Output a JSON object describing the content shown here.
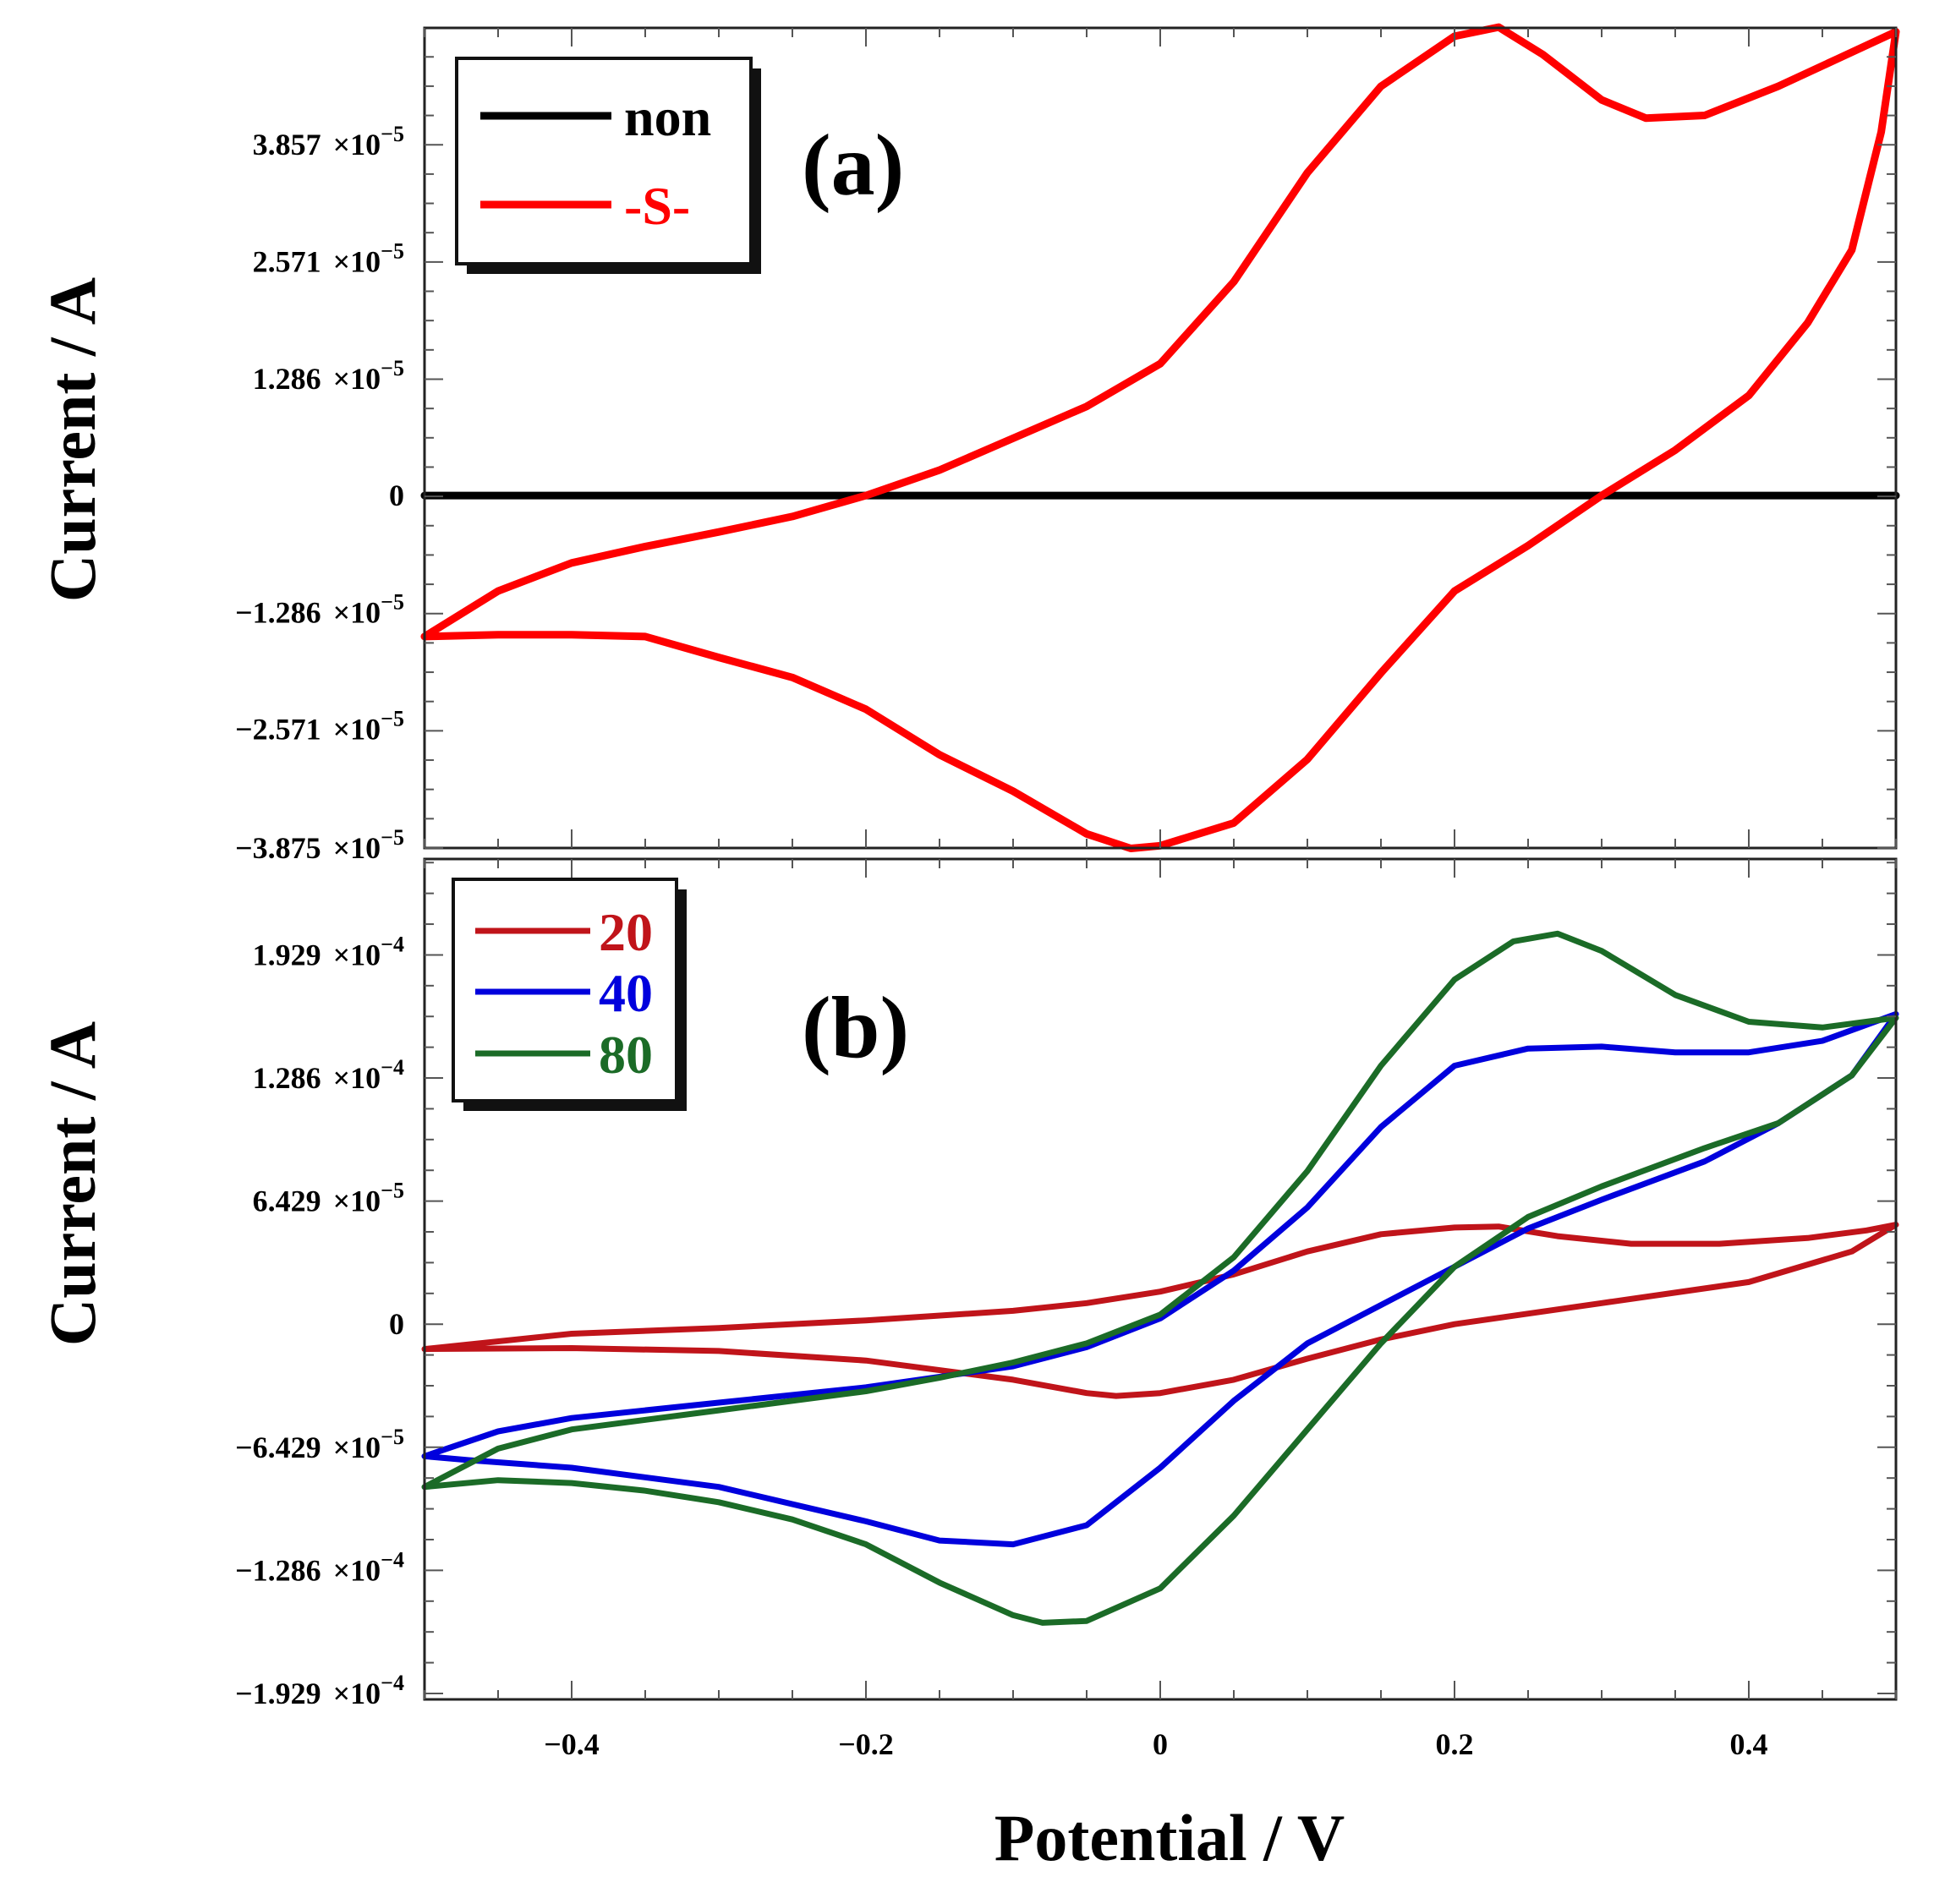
{
  "chart_data": [
    {
      "type": "line",
      "panel_label": "(a)",
      "xlabel": "Potential / V",
      "ylabel": "Current / A",
      "xlim": [
        -0.5,
        0.5
      ],
      "ylim": [
        -3.875e-05,
        5.142e-05
      ],
      "x_ticks": [
        -0.4,
        -0.2,
        0,
        0.2,
        0.4
      ],
      "y_ticks": [
        {
          "value": 3.857e-05,
          "mant": "3.857",
          "exp": "−5"
        },
        {
          "value": 2.571e-05,
          "mant": "2.571",
          "exp": "−5"
        },
        {
          "value": 1.286e-05,
          "mant": "1.286",
          "exp": "−5"
        },
        {
          "value": 0,
          "mant": "0",
          "exp": ""
        },
        {
          "value": -1.286e-05,
          "mant": "−1.286",
          "exp": "−5"
        },
        {
          "value": -2.571e-05,
          "mant": "−2.571",
          "exp": "−5"
        },
        {
          "value": -3.875e-05,
          "mant": "−3.875",
          "exp": "−5"
        }
      ],
      "legend_position": "top-left",
      "series": [
        {
          "name": "non",
          "color": "#000000",
          "x": [
            -0.5,
            0.5
          ],
          "y": [
            0,
            0
          ]
        },
        {
          "name": "-S-",
          "color": "#ff0000",
          "x": [
            -0.5,
            -0.45,
            -0.4,
            -0.35,
            -0.3,
            -0.25,
            -0.2,
            -0.15,
            -0.1,
            -0.05,
            0,
            0.05,
            0.1,
            0.15,
            0.2,
            0.23,
            0.26,
            0.3,
            0.33,
            0.37,
            0.42,
            0.46,
            0.5,
            0.49,
            0.47,
            0.44,
            0.4,
            0.35,
            0.3,
            0.25,
            0.2,
            0.15,
            0.1,
            0.05,
            0,
            -0.02,
            -0.05,
            -0.1,
            -0.15,
            -0.2,
            -0.25,
            -0.3,
            -0.35,
            -0.4,
            -0.45,
            -0.5
          ],
          "y": [
            -1.55e-05,
            -1.05e-05,
            -7.4e-06,
            -5.6e-06,
            -4e-06,
            -2.3e-06,
            0,
            2.8e-06,
            6.3e-06,
            9.8e-06,
            1.45e-05,
            2.35e-05,
            3.55e-05,
            4.5e-05,
            5.05e-05,
            5.15e-05,
            4.85e-05,
            4.35e-05,
            4.15e-05,
            4.18e-05,
            4.5e-05,
            4.8e-05,
            5.1e-05,
            4e-05,
            2.7e-05,
            1.9e-05,
            1.1e-05,
            5e-06,
            0,
            -5.5e-06,
            -1.05e-05,
            -1.95e-05,
            -2.9e-05,
            -3.6e-05,
            -3.85e-05,
            -3.88e-05,
            -3.72e-05,
            -3.25e-05,
            -2.85e-05,
            -2.35e-05,
            -2e-05,
            -1.78e-05,
            -1.55e-05,
            -1.53e-05,
            -1.53e-05,
            -1.55e-05
          ]
        }
      ]
    },
    {
      "type": "line",
      "panel_label": "(b)",
      "xlabel": "Potential / V",
      "ylabel": "Current / A",
      "xlim": [
        -0.5,
        0.5
      ],
      "ylim": [
        -0.000196,
        0.000243
      ],
      "x_ticks": [
        -0.4,
        -0.2,
        0,
        0.2,
        0.4
      ],
      "y_ticks": [
        {
          "value": 0.0001929,
          "mant": "1.929",
          "exp": "−4"
        },
        {
          "value": 0.0001286,
          "mant": "1.286",
          "exp": "−4"
        },
        {
          "value": 6.429e-05,
          "mant": "6.429",
          "exp": "−5"
        },
        {
          "value": 0,
          "mant": "0",
          "exp": ""
        },
        {
          "value": -6.429e-05,
          "mant": "−6.429",
          "exp": "−5"
        },
        {
          "value": -0.0001286,
          "mant": "−1.286",
          "exp": "−4"
        },
        {
          "value": -0.0001929,
          "mant": "−1.929",
          "exp": "−4"
        }
      ],
      "legend_position": "top-left",
      "series": [
        {
          "name": "20",
          "color": "#c0141a",
          "x": [
            -0.5,
            -0.4,
            -0.3,
            -0.2,
            -0.1,
            -0.05,
            0,
            0.05,
            0.1,
            0.15,
            0.2,
            0.23,
            0.27,
            0.32,
            0.38,
            0.44,
            0.48,
            0.5,
            0.47,
            0.4,
            0.3,
            0.2,
            0.15,
            0.1,
            0.05,
            0,
            -0.03,
            -0.05,
            -0.1,
            -0.2,
            -0.3,
            -0.4,
            -0.5
          ],
          "y": [
            -1.3e-05,
            -5e-06,
            -2e-06,
            2e-06,
            7e-06,
            1.1e-05,
            1.7e-05,
            2.6e-05,
            3.8e-05,
            4.7e-05,
            5.05e-05,
            5.1e-05,
            4.6e-05,
            4.2e-05,
            4.2e-05,
            4.5e-05,
            4.9e-05,
            5.2e-05,
            3.8e-05,
            2.2e-05,
            1.1e-05,
            0,
            -8e-06,
            -1.8e-05,
            -2.9e-05,
            -3.6e-05,
            -3.75e-05,
            -3.6e-05,
            -2.9e-05,
            -1.9e-05,
            -1.4e-05,
            -1.25e-05,
            -1.3e-05
          ]
        },
        {
          "name": "40",
          "color": "#0000dd",
          "x": [
            -0.5,
            -0.45,
            -0.4,
            -0.3,
            -0.2,
            -0.1,
            -0.05,
            0,
            0.05,
            0.1,
            0.15,
            0.2,
            0.25,
            0.3,
            0.35,
            0.4,
            0.45,
            0.5,
            0.47,
            0.42,
            0.37,
            0.3,
            0.25,
            0.2,
            0.1,
            0.05,
            0,
            -0.05,
            -0.1,
            -0.15,
            -0.2,
            -0.3,
            -0.4,
            -0.47,
            -0.5
          ],
          "y": [
            -6.9e-05,
            -5.6e-05,
            -4.9e-05,
            -4.1e-05,
            -3.3e-05,
            -2.2e-05,
            -1.2e-05,
            3e-06,
            2.8e-05,
            6.1e-05,
            0.000103,
            0.000135,
            0.000144,
            0.000145,
            0.000142,
            0.000142,
            0.000148,
            0.000162,
            0.00013,
            0.000105,
            8.5e-05,
            6.5e-05,
            5e-05,
            3e-05,
            -1e-05,
            -4e-05,
            -7.5e-05,
            -0.000105,
            -0.000115,
            -0.000113,
            -0.000103,
            -8.5e-05,
            -7.5e-05,
            -7.1e-05,
            -6.9e-05
          ]
        },
        {
          "name": "80",
          "color": "#1b6b27",
          "x": [
            -0.5,
            -0.45,
            -0.4,
            -0.3,
            -0.2,
            -0.15,
            -0.1,
            -0.05,
            0,
            0.05,
            0.1,
            0.15,
            0.2,
            0.24,
            0.27,
            0.3,
            0.35,
            0.4,
            0.45,
            0.5,
            0.47,
            0.42,
            0.37,
            0.3,
            0.25,
            0.2,
            0.15,
            0.1,
            0.05,
            0,
            -0.05,
            -0.08,
            -0.1,
            -0.15,
            -0.2,
            -0.25,
            -0.3,
            -0.35,
            -0.4,
            -0.45,
            -0.5
          ],
          "y": [
            -8.5e-05,
            -6.5e-05,
            -5.5e-05,
            -4.5e-05,
            -3.5e-05,
            -2.8e-05,
            -2e-05,
            -1e-05,
            5e-06,
            3.5e-05,
            8e-05,
            0.000135,
            0.00018,
            0.0002,
            0.000204,
            0.000195,
            0.000172,
            0.000158,
            0.000155,
            0.00016,
            0.00013,
            0.000105,
            9.2e-05,
            7.2e-05,
            5.6e-05,
            3e-05,
            -1e-05,
            -5.5e-05,
            -0.0001,
            -0.000138,
            -0.000155,
            -0.000156,
            -0.000152,
            -0.000135,
            -0.000115,
            -0.000102,
            -9.3e-05,
            -8.7e-05,
            -8.3e-05,
            -8.15e-05,
            -8.5e-05
          ]
        }
      ]
    }
  ]
}
